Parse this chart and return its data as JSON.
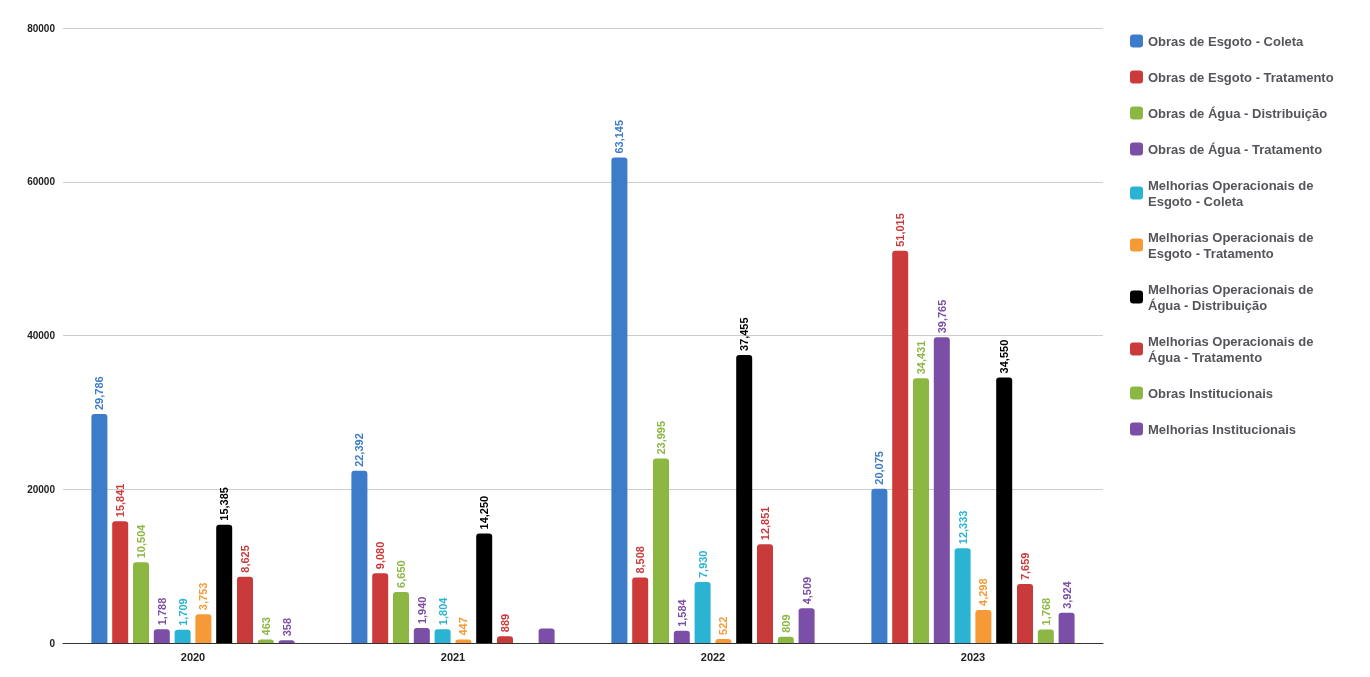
{
  "chart_data": {
    "type": "bar",
    "categories": [
      "2020",
      "2021",
      "2022",
      "2023"
    ],
    "ylim": [
      0,
      80000
    ],
    "yticks": [
      0,
      20000,
      40000,
      60000,
      80000
    ],
    "grid": "y",
    "legend": "right",
    "series": [
      {
        "name": "Obras de Esgoto - Coleta",
        "color": "#3d7cc9",
        "values": [
          29786,
          22392,
          63145,
          20075
        ],
        "value_labels": [
          "29,786",
          "22,392",
          "63,145",
          "20,075"
        ]
      },
      {
        "name": "Obras de Esgoto - Tratamento",
        "color": "#cc3a3a",
        "values": [
          15841,
          9080,
          8508,
          51015
        ],
        "value_labels": [
          "15,841",
          "9,080",
          "8,508",
          "51,015"
        ]
      },
      {
        "name": "Obras de Água - Distribuição",
        "color": "#8cb743",
        "values": [
          10504,
          6650,
          23995,
          34431
        ],
        "value_labels": [
          "10,504",
          "6,650",
          "23,995",
          "34,431"
        ]
      },
      {
        "name": "Obras de Água - Tratamento",
        "color": "#7b4fa6",
        "values": [
          1788,
          1940,
          1584,
          39765
        ],
        "value_labels": [
          "1,788",
          "1,940",
          "1,584",
          "39,765"
        ]
      },
      {
        "name": "Melhorias Operacionais de Esgoto - Coleta",
        "color": "#2bb3d3",
        "values": [
          1709,
          1804,
          7930,
          12333
        ],
        "value_labels": [
          "1,709",
          "1,804",
          "7,930",
          "12,333"
        ]
      },
      {
        "name": "Melhorias Operacionais de Esgoto - Tratamento",
        "color": "#f59a36",
        "values": [
          3753,
          447,
          522,
          4298
        ],
        "value_labels": [
          "3,753",
          "447",
          "522",
          "4,298"
        ]
      },
      {
        "name": "Melhorias Operacionais de Água - Distribuição",
        "color": "#000000",
        "values": [
          15385,
          14250,
          37455,
          34550
        ],
        "value_labels": [
          "15,385",
          "14,250",
          "37,455",
          "34,550"
        ]
      },
      {
        "name": "Melhorias Operacionais de Água - Tratamento",
        "color": "#c93a3a",
        "values": [
          8625,
          889,
          12851,
          7659
        ],
        "value_labels": [
          "8,625",
          "889",
          "12,851",
          "7,659"
        ]
      },
      {
        "name": "Obras Institucionais",
        "color": "#8cb744",
        "values": [
          463,
          null,
          809,
          1768
        ],
        "value_labels": [
          "463",
          null,
          "809",
          "1,768"
        ]
      },
      {
        "name": "Melhorias Institucionais",
        "color": "#7b4fa7",
        "values": [
          358,
          1900,
          4509,
          3924
        ],
        "value_labels": [
          "358",
          null,
          "4,509",
          "3,924"
        ]
      }
    ]
  }
}
